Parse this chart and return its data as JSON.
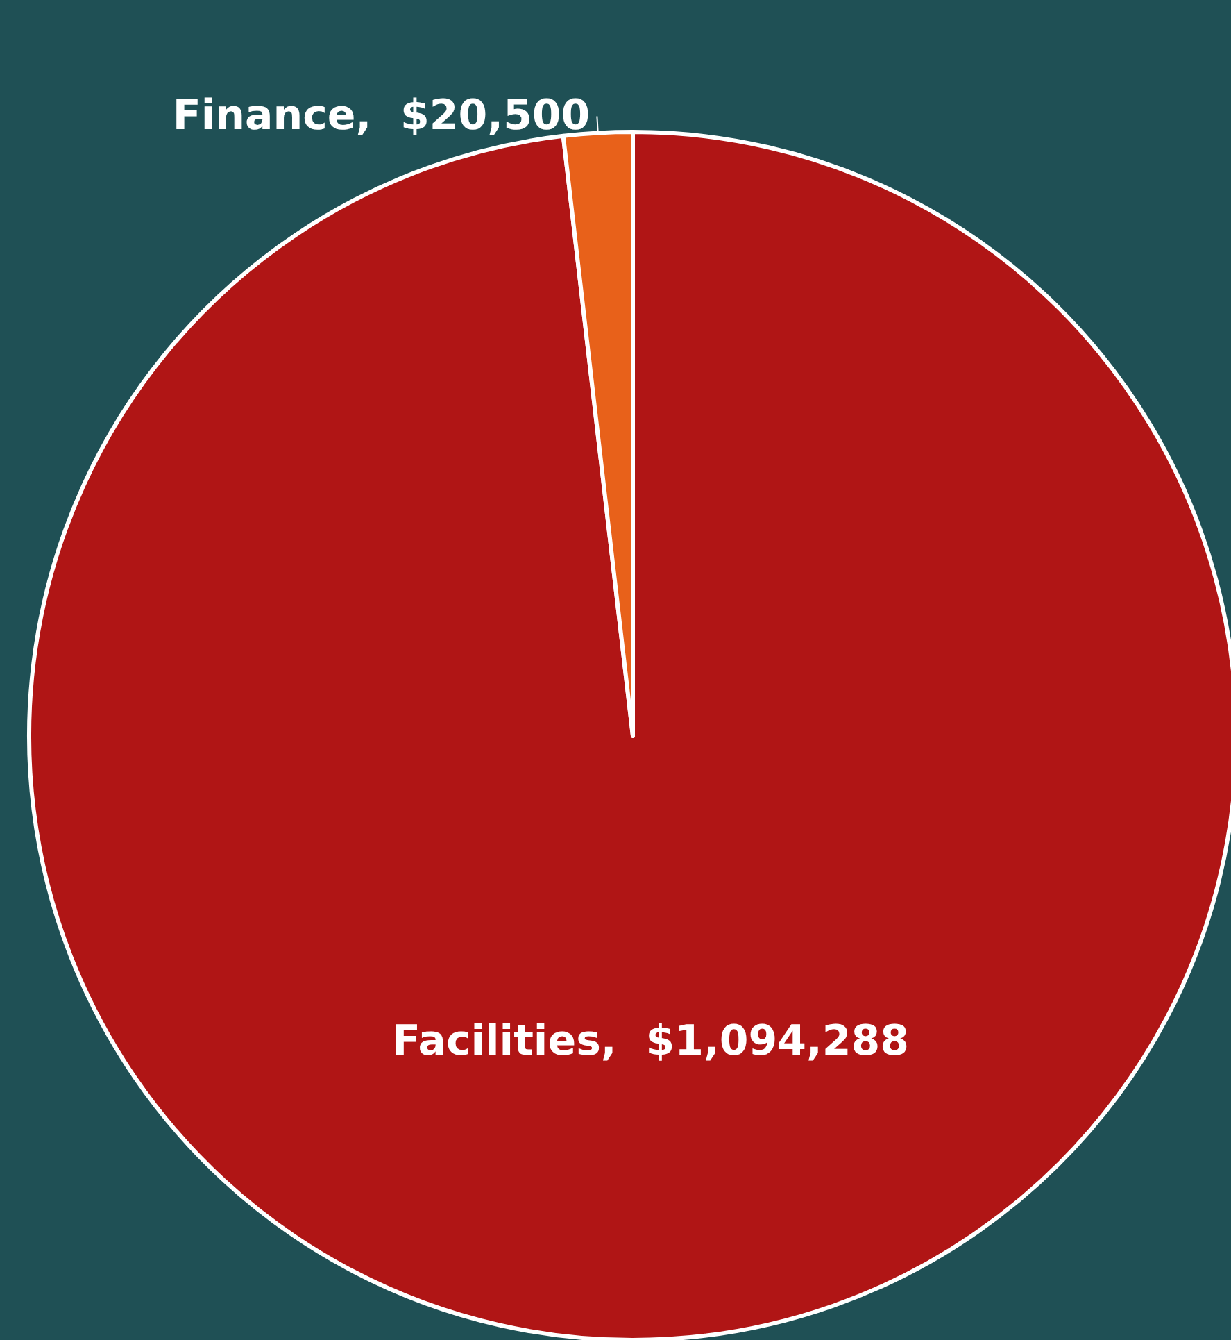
{
  "chart_data": {
    "type": "pie",
    "categories": [
      "Facilities",
      "Finance"
    ],
    "values": [
      1094288,
      20500
    ],
    "colors": [
      "#b01515",
      "#e8611a"
    ],
    "value_labels": [
      "$1,094,288",
      "$20,500"
    ],
    "legend": false
  }
}
